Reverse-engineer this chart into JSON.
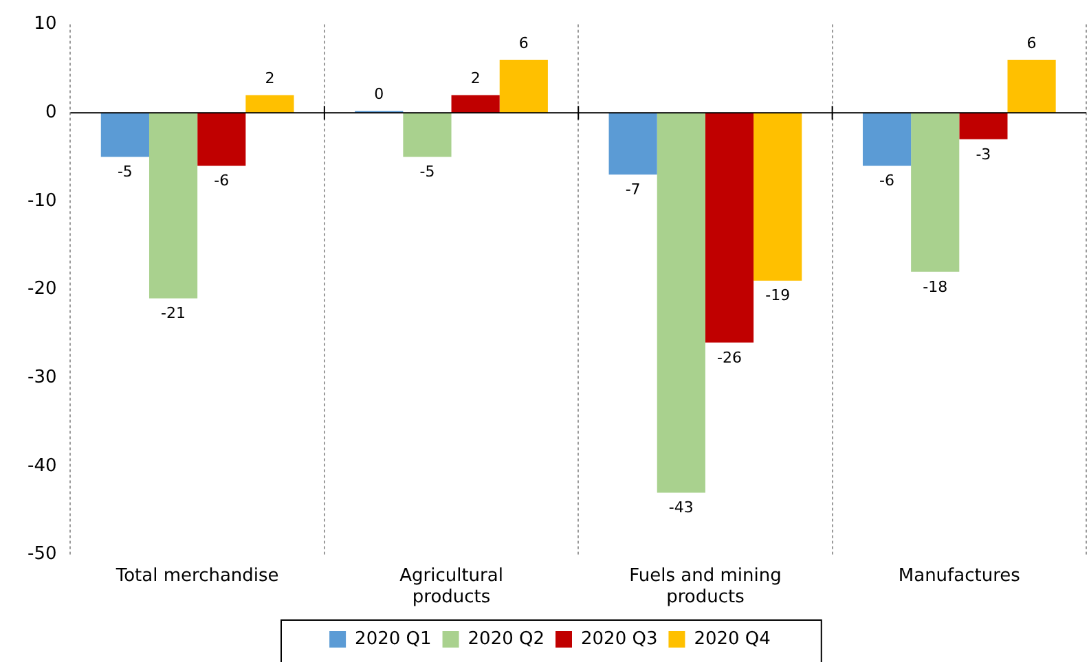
{
  "chart_data": {
    "type": "bar",
    "categories": [
      "Total merchandise",
      "Agricultural products",
      "Fuels and mining products",
      "Manufactures"
    ],
    "series": [
      {
        "name": "2020 Q1",
        "color": "#5b9bd5",
        "values": [
          -5,
          0.2,
          -7,
          -6
        ],
        "value_labels": [
          "-5",
          "0",
          "-7",
          "-6"
        ]
      },
      {
        "name": "2020 Q2",
        "color": "#a9d18e",
        "values": [
          -21,
          -5,
          -43,
          -18
        ],
        "value_labels": [
          "-21",
          "-5",
          "-43",
          "-18"
        ]
      },
      {
        "name": "2020 Q3",
        "color": "#c00000",
        "values": [
          -6,
          2,
          -26,
          -3
        ],
        "value_labels": [
          "-6",
          "2",
          "-26",
          "-3"
        ]
      },
      {
        "name": "2020 Q4",
        "color": "#ffc000",
        "values": [
          2,
          6,
          -19,
          6
        ],
        "value_labels": [
          "2",
          "6",
          "-19",
          "6"
        ]
      }
    ],
    "ylim": [
      -50,
      10
    ],
    "yticks": [
      -50,
      -40,
      -30,
      -20,
      -10,
      0,
      10
    ],
    "grid": "x",
    "legend": "bottom"
  }
}
